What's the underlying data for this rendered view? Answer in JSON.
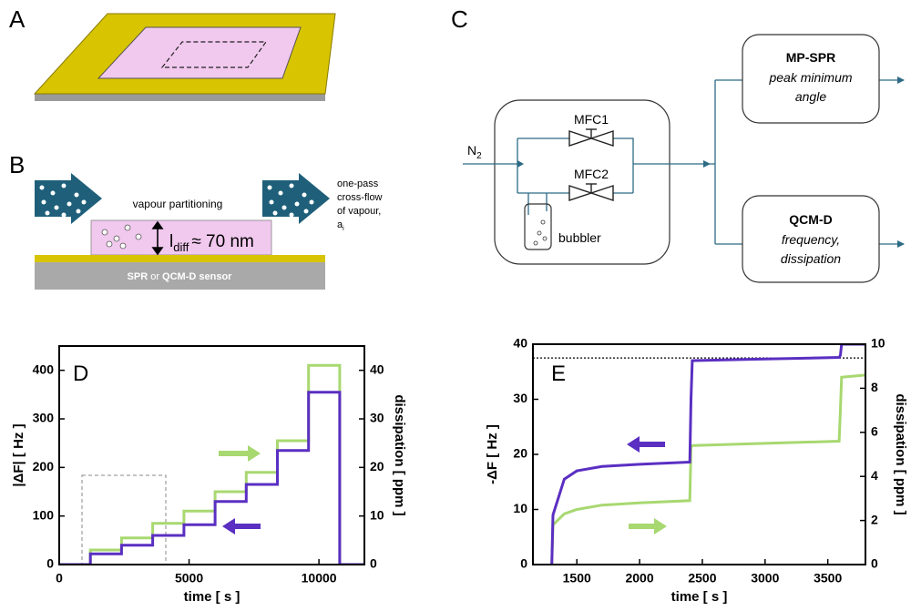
{
  "panel_labels": {
    "a": "A",
    "b": "B",
    "c": "C",
    "d": "D",
    "e": "E"
  },
  "diagram_b": {
    "partitioning": "vapour partitioning",
    "crossflow": [
      "one-pass",
      "cross-flow",
      "of vapour,"
    ],
    "activity": {
      "main": "a",
      "sub": "i"
    },
    "thickness": {
      "main": "l",
      "sub": "diff",
      "rest": "≈ 70 nm"
    },
    "sensor": {
      "a": "SPR",
      "or": " or ",
      "b": "QCM-D",
      "rest": " sensor"
    }
  },
  "diagram_c": {
    "gas": {
      "main": "N",
      "sub": "2"
    },
    "mfc1": "MFC1",
    "mfc2": "MFC2",
    "bubbler": "bubbler",
    "spr": {
      "title": "MP-SPR",
      "lines": [
        "peak minimum",
        "angle"
      ]
    },
    "qcm": {
      "title": "QCM-D",
      "lines": [
        "frequency,",
        "dissipation"
      ]
    }
  },
  "chart_data": [
    {
      "type": "line",
      "xlabel": "time [ s ]",
      "ylabel": "|ΔF| [ Hz ]",
      "y2label": "dissipation [ ppm ]",
      "xlim": [
        0,
        11750
      ],
      "xticks": [
        0,
        5000,
        10000
      ],
      "ylim": [
        0,
        450
      ],
      "yticks": [
        0,
        100,
        200,
        300,
        400
      ],
      "y2lim": [
        0,
        45
      ],
      "y2ticks": [
        0,
        10,
        20,
        30,
        40
      ],
      "x": [
        0,
        1200,
        1200,
        2400,
        2400,
        3600,
        3600,
        4800,
        4800,
        6000,
        6000,
        7200,
        7200,
        8400,
        8400,
        9600,
        9600,
        10800,
        10800,
        11750
      ],
      "series": [
        {
          "name": "dissipation",
          "color": "#a8d870",
          "axis": "y2",
          "values": [
            0,
            0,
            3,
            3,
            5.5,
            5.5,
            8.5,
            8.5,
            11,
            11,
            15,
            15,
            19,
            19,
            25.5,
            25.5,
            41,
            41,
            0,
            0
          ]
        },
        {
          "name": "|ΔF|",
          "color": "#5a2fc2",
          "values": [
            0,
            0,
            22,
            22,
            40,
            40,
            60,
            60,
            82,
            82,
            130,
            130,
            165,
            165,
            235,
            235,
            355,
            355,
            0,
            0
          ]
        }
      ]
    },
    {
      "type": "line",
      "xlabel": "time [ s ]",
      "ylabel": "-ΔF [ Hz ]",
      "y2label": "dissipation [ ppm ]",
      "xlim": [
        1150,
        3800
      ],
      "xticks": [
        1500,
        2000,
        2500,
        3000,
        3500
      ],
      "ylim": [
        0,
        40
      ],
      "yticks": [
        0,
        10,
        20,
        30,
        40
      ],
      "y2lim": [
        0,
        10
      ],
      "y2ticks": [
        0,
        2,
        4,
        6,
        8,
        10
      ],
      "reference_line": 37.5,
      "x": [
        1300,
        1310,
        1400,
        1500,
        1700,
        2000,
        2400,
        2410,
        2420,
        3000,
        3590,
        3600,
        3610,
        3800
      ],
      "series": [
        {
          "name": "dissipation",
          "color": "#a8d870",
          "axis": "y2",
          "values": [
            0,
            1.8,
            2.3,
            2.5,
            2.7,
            2.8,
            2.9,
            5.3,
            5.4,
            5.5,
            5.6,
            7,
            8.5,
            8.6
          ]
        },
        {
          "name": "-ΔF",
          "color": "#5a2fc2",
          "values": [
            0,
            9,
            15.5,
            17,
            17.8,
            18.2,
            18.6,
            30,
            37,
            37.3,
            37.6,
            38,
            40,
            40
          ]
        }
      ]
    }
  ]
}
